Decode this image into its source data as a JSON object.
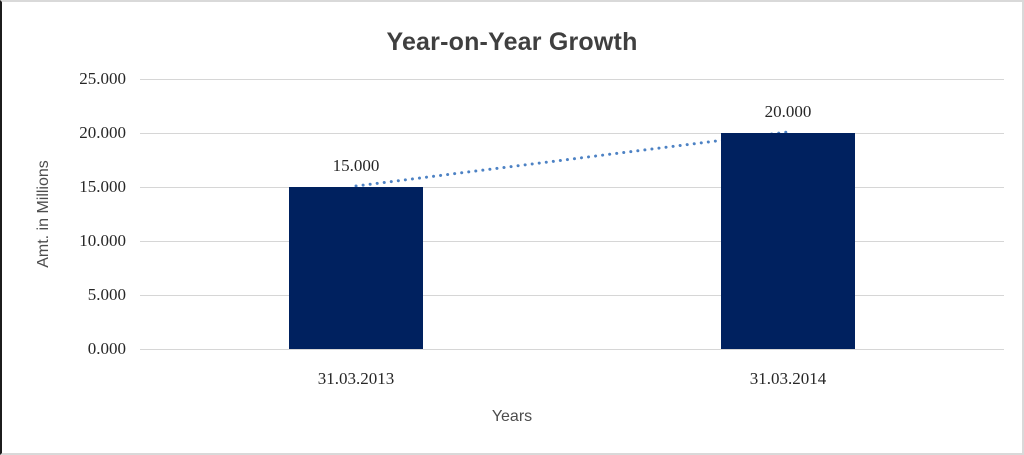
{
  "chart_data": {
    "type": "bar",
    "title": "Year-on-Year Growth",
    "xlabel": "Years",
    "ylabel": "Amt. in Millions",
    "categories": [
      "31.03.2013",
      "31.03.2014"
    ],
    "values": [
      15000,
      20000
    ],
    "data_labels": [
      "15.000",
      "20.000"
    ],
    "ylim": [
      0,
      25000
    ],
    "ytick_values": [
      0,
      5000,
      10000,
      15000,
      20000,
      25000
    ],
    "ytick_labels": [
      "0.000",
      "5.000",
      "10.000",
      "15.000",
      "20.000",
      "25.000"
    ],
    "grid": true,
    "legend": "none",
    "colors": {
      "bar": "#00215f",
      "trendline": "#4d82c4",
      "gridline": "#d6d6d6",
      "title_text": "#3f3f3f",
      "tick_text": "#262626",
      "axis_title_text": "#4d4d4d"
    },
    "trendline": {
      "style": "dotted",
      "from": "top of bar 1",
      "to": "top of bar 2"
    }
  }
}
